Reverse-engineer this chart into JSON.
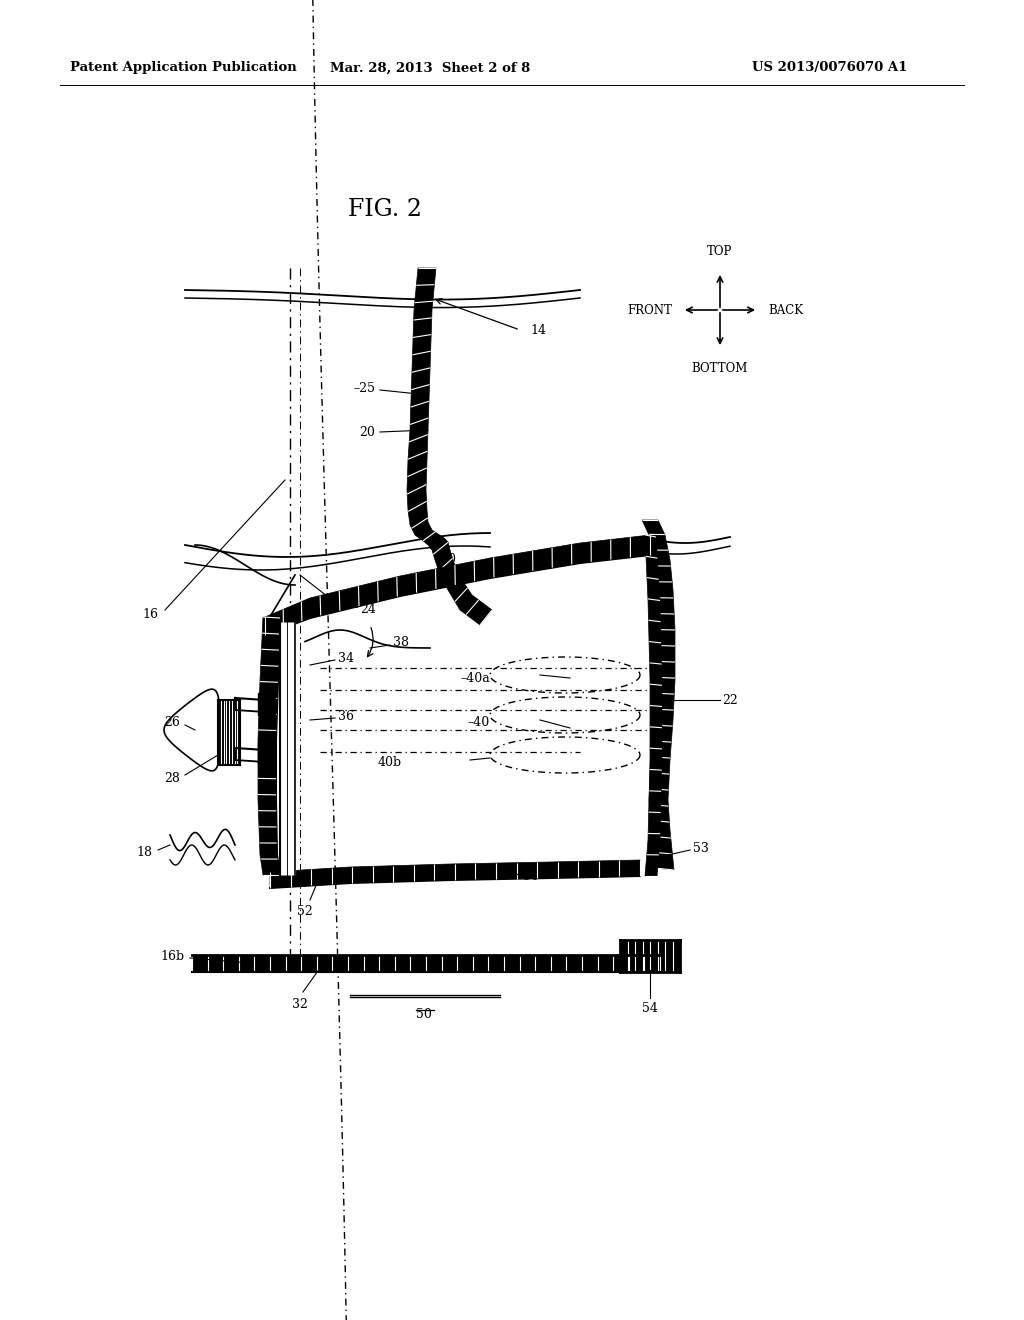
{
  "bg_color": "#ffffff",
  "header_text": "Patent Application Publication",
  "header_date": "Mar. 28, 2013  Sheet 2 of 8",
  "header_patent": "US 2013/0076070 A1",
  "fig_label": "FIG. 2"
}
